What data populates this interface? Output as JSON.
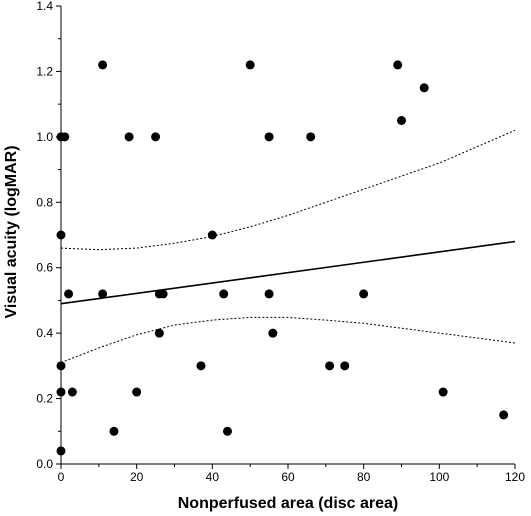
{
  "chart_data": {
    "type": "scatter",
    "title": "",
    "xlabel": "Nonperfused area (disc area)",
    "ylabel": "Visual acuity (logMAR)",
    "xlim": [
      0,
      120
    ],
    "ylim": [
      0,
      1.4
    ],
    "x_ticks": [
      "0",
      "20",
      "40",
      "60",
      "80",
      "100",
      "120"
    ],
    "y_ticks": [
      "0.0",
      "0.2",
      "0.4",
      "0.6",
      "0.8",
      "1.0",
      "1.2",
      "1.4"
    ],
    "grid": false,
    "legend": "none",
    "points": [
      {
        "x": 0,
        "y": 1.0
      },
      {
        "x": 1,
        "y": 1.0
      },
      {
        "x": 0,
        "y": 0.7
      },
      {
        "x": 2,
        "y": 0.52
      },
      {
        "x": 0,
        "y": 0.3
      },
      {
        "x": 0,
        "y": 0.22
      },
      {
        "x": 3,
        "y": 0.22
      },
      {
        "x": 0,
        "y": 0.04
      },
      {
        "x": 11,
        "y": 1.22
      },
      {
        "x": 11,
        "y": 0.52
      },
      {
        "x": 14,
        "y": 0.1
      },
      {
        "x": 18,
        "y": 1.0
      },
      {
        "x": 20,
        "y": 0.22
      },
      {
        "x": 25,
        "y": 1.0
      },
      {
        "x": 26,
        "y": 0.52
      },
      {
        "x": 27,
        "y": 0.52
      },
      {
        "x": 26,
        "y": 0.4
      },
      {
        "x": 37,
        "y": 0.3
      },
      {
        "x": 40,
        "y": 0.7
      },
      {
        "x": 43,
        "y": 0.52
      },
      {
        "x": 44,
        "y": 0.1
      },
      {
        "x": 50,
        "y": 1.22
      },
      {
        "x": 55,
        "y": 1.0
      },
      {
        "x": 55,
        "y": 0.52
      },
      {
        "x": 56,
        "y": 0.4
      },
      {
        "x": 66,
        "y": 1.0
      },
      {
        "x": 71,
        "y": 0.3
      },
      {
        "x": 75,
        "y": 0.3
      },
      {
        "x": 80,
        "y": 0.52
      },
      {
        "x": 89,
        "y": 1.22
      },
      {
        "x": 90,
        "y": 1.05
      },
      {
        "x": 96,
        "y": 1.15
      },
      {
        "x": 101,
        "y": 0.22
      },
      {
        "x": 117,
        "y": 0.15
      }
    ],
    "regression_line": {
      "x": [
        0,
        120
      ],
      "y": [
        0.49,
        0.68
      ],
      "style": "solid"
    },
    "confidence_bands": {
      "style": "dotted",
      "upper": {
        "x": [
          0,
          10,
          20,
          30,
          40,
          50,
          60,
          70,
          80,
          90,
          100,
          110,
          120
        ],
        "y": [
          0.66,
          0.655,
          0.66,
          0.675,
          0.695,
          0.725,
          0.76,
          0.8,
          0.84,
          0.88,
          0.92,
          0.97,
          1.02
        ]
      },
      "lower": {
        "x": [
          0,
          10,
          20,
          30,
          40,
          50,
          60,
          70,
          80,
          90,
          100,
          110,
          120
        ],
        "y": [
          0.31,
          0.355,
          0.395,
          0.425,
          0.44,
          0.448,
          0.448,
          0.44,
          0.43,
          0.415,
          0.4,
          0.385,
          0.37
        ]
      }
    },
    "marker_color": "#000000",
    "line_color": "#000000"
  }
}
